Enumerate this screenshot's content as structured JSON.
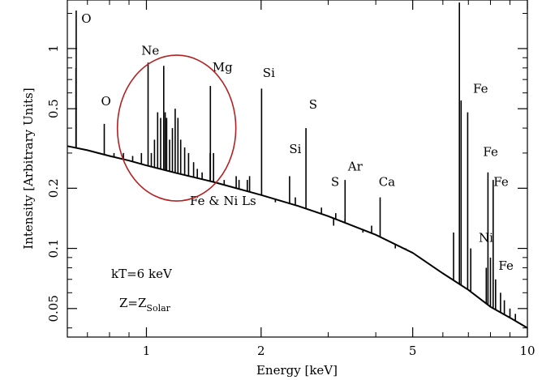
{
  "chart_data": {
    "type": "line",
    "title": "",
    "xlabel": "Energy [keV]",
    "ylabel": "Intensity [Arbitrary Units]",
    "x_scale": "log",
    "y_scale": "log",
    "xlim": [
      0.62,
      10
    ],
    "ylim": [
      0.036,
      1.75
    ],
    "x_ticks": [
      {
        "value": 1,
        "label": "1"
      },
      {
        "value": 2,
        "label": "2"
      },
      {
        "value": 5,
        "label": "5"
      },
      {
        "value": 10,
        "label": "10"
      }
    ],
    "y_ticks": [
      {
        "value": 0.05,
        "label": "0.05"
      },
      {
        "value": 0.1,
        "label": "0.1"
      },
      {
        "value": 0.2,
        "label": "0.2"
      },
      {
        "value": 0.5,
        "label": "0.5"
      },
      {
        "value": 1,
        "label": "1"
      }
    ],
    "grid": false,
    "continuum": [
      [
        0.62,
        0.325
      ],
      [
        0.7,
        0.31
      ],
      [
        0.8,
        0.29
      ],
      [
        0.9,
        0.275
      ],
      [
        1.0,
        0.26
      ],
      [
        1.2,
        0.238
      ],
      [
        1.5,
        0.215
      ],
      [
        2.0,
        0.185
      ],
      [
        2.5,
        0.163
      ],
      [
        3.0,
        0.145
      ],
      [
        4.0,
        0.117
      ],
      [
        5.0,
        0.095
      ],
      [
        6.0,
        0.075
      ],
      [
        7.0,
        0.062
      ],
      [
        8.0,
        0.051
      ],
      [
        9.0,
        0.045
      ],
      [
        10.0,
        0.04
      ]
    ],
    "emission_lines": [
      [
        0.654,
        1.55
      ],
      [
        0.653,
        0.8
      ],
      [
        0.775,
        0.42
      ],
      [
        0.822,
        0.3
      ],
      [
        0.87,
        0.3
      ],
      [
        0.92,
        0.29
      ],
      [
        0.97,
        0.3
      ],
      [
        1.01,
        0.85
      ],
      [
        1.03,
        0.3
      ],
      [
        1.05,
        0.35
      ],
      [
        1.07,
        0.48
      ],
      [
        1.09,
        0.45
      ],
      [
        1.11,
        0.82
      ],
      [
        1.12,
        0.48
      ],
      [
        1.13,
        0.45
      ],
      [
        1.15,
        0.35
      ],
      [
        1.17,
        0.4
      ],
      [
        1.19,
        0.5
      ],
      [
        1.21,
        0.45
      ],
      [
        1.23,
        0.35
      ],
      [
        1.26,
        0.32
      ],
      [
        1.29,
        0.3
      ],
      [
        1.33,
        0.27
      ],
      [
        1.36,
        0.25
      ],
      [
        1.4,
        0.24
      ],
      [
        1.47,
        0.3
      ],
      [
        1.472,
        0.65
      ],
      [
        1.5,
        0.3
      ],
      [
        1.6,
        0.22
      ],
      [
        1.72,
        0.23
      ],
      [
        1.75,
        0.22
      ],
      [
        1.84,
        0.22
      ],
      [
        1.865,
        0.23
      ],
      [
        2.006,
        0.63
      ],
      [
        2.18,
        0.17
      ],
      [
        2.376,
        0.23
      ],
      [
        2.46,
        0.18
      ],
      [
        2.623,
        0.4
      ],
      [
        2.88,
        0.16
      ],
      [
        3.1,
        0.13
      ],
      [
        3.14,
        0.15
      ],
      [
        3.32,
        0.14
      ],
      [
        3.323,
        0.22
      ],
      [
        3.7,
        0.12
      ],
      [
        3.9,
        0.13
      ],
      [
        4.107,
        0.18
      ],
      [
        4.5,
        0.1
      ],
      [
        4.8,
        0.1
      ],
      [
        6.4,
        0.12
      ],
      [
        6.63,
        1.7
      ],
      [
        6.7,
        0.55
      ],
      [
        6.97,
        0.48
      ],
      [
        7.1,
        0.1
      ],
      [
        7.8,
        0.08
      ],
      [
        7.88,
        0.24
      ],
      [
        8.0,
        0.09
      ],
      [
        8.13,
        0.22
      ],
      [
        8.25,
        0.07
      ],
      [
        8.5,
        0.06
      ],
      [
        8.7,
        0.055
      ],
      [
        9.0,
        0.05
      ],
      [
        9.3,
        0.047
      ]
    ],
    "annotations": [
      {
        "text": "O",
        "x": 0.675,
        "y": 1.35
      },
      {
        "text": "O",
        "x": 0.76,
        "y": 0.52
      },
      {
        "text": "Ne",
        "x": 0.97,
        "y": 0.93
      },
      {
        "text": "Mg",
        "x": 1.49,
        "y": 0.77
      },
      {
        "text": "Si",
        "x": 2.02,
        "y": 0.72
      },
      {
        "text": "S",
        "x": 2.67,
        "y": 0.5
      },
      {
        "text": "Si",
        "x": 2.37,
        "y": 0.3
      },
      {
        "text": "Ar",
        "x": 3.38,
        "y": 0.245
      },
      {
        "text": "S",
        "x": 3.05,
        "y": 0.205
      },
      {
        "text": "Ca",
        "x": 4.07,
        "y": 0.205
      },
      {
        "text": "Fe & Ni Ls",
        "x": 1.3,
        "y": 0.165
      },
      {
        "text": "Fe",
        "x": 7.2,
        "y": 0.6
      },
      {
        "text": "Fe",
        "x": 7.65,
        "y": 0.29
      },
      {
        "text": "Fe",
        "x": 8.15,
        "y": 0.205
      },
      {
        "text": "Ni",
        "x": 7.45,
        "y": 0.108
      },
      {
        "text": "Fe",
        "x": 8.4,
        "y": 0.078
      }
    ],
    "notes": {
      "kt": "kT=6 keV",
      "z_main": "Z=Z",
      "z_sub": "Solar"
    },
    "highlight": {
      "shape": "ellipse",
      "color": "#b22222",
      "x_center": 1.2,
      "y_center": 0.4
    },
    "colors": {
      "spectrum": "#000000",
      "highlight": "#b22222"
    }
  }
}
